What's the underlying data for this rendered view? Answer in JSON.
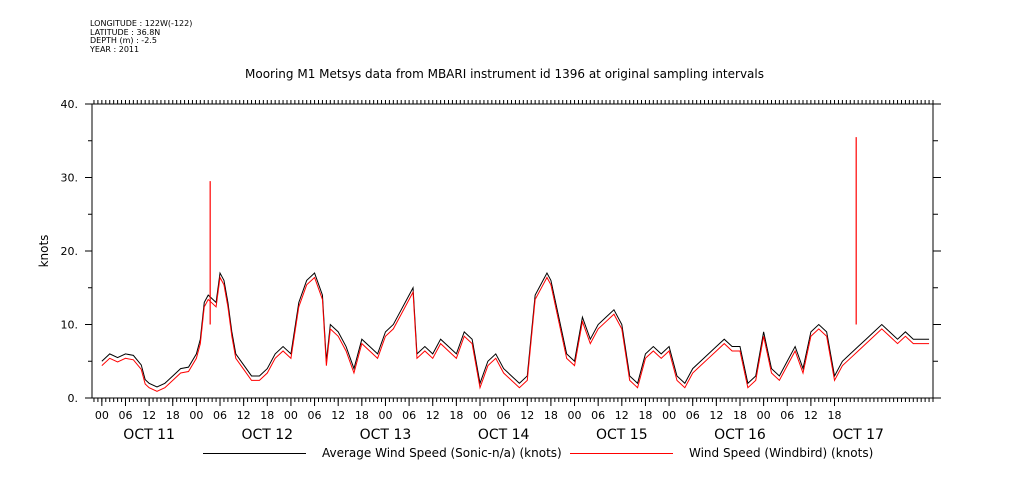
{
  "header": {
    "lines": [
      "LONGITUDE : 122W(-122)",
      "LATITUDE : 36.8N",
      "DEPTH (m) : -2.5",
      "YEAR : 2011"
    ]
  },
  "chart_data": {
    "type": "line",
    "title": "Mooring M1 Metsys data from MBARI instrument id 1396 at original sampling intervals",
    "ylabel": "knots",
    "xlabel": "",
    "ylim": [
      0,
      40
    ],
    "yticks": [
      "0.",
      "10.",
      "20.",
      "30.",
      "40."
    ],
    "xlim_hours": [
      -2.5,
      211
    ],
    "xtick_labels": [
      "00",
      "06",
      "12",
      "18",
      "00",
      "06",
      "12",
      "18",
      "00",
      "06",
      "12",
      "18",
      "00",
      "06",
      "12",
      "18",
      "00",
      "06",
      "12",
      "18",
      "00",
      "06",
      "12",
      "18",
      "00",
      "06",
      "12",
      "18",
      "00",
      "06",
      "12",
      "18"
    ],
    "day_labels": [
      "OCT 11",
      "OCT 12",
      "OCT 13",
      "OCT 14",
      "OCT 15",
      "OCT 16",
      "OCT 17"
    ],
    "series": [
      {
        "name": "Average Wind Speed (Sonic-n/a) (knots)",
        "color": "#000000",
        "x_hours": [
          0,
          2,
          4,
          6,
          8,
          10,
          11,
          12,
          14,
          16,
          18,
          20,
          22,
          24,
          25,
          26,
          27,
          28,
          29,
          30,
          31,
          32,
          33,
          34,
          36,
          38,
          40,
          42,
          44,
          46,
          48,
          50,
          52,
          54,
          56,
          57,
          58,
          60,
          62,
          64,
          66,
          68,
          70,
          72,
          74,
          76,
          78,
          79,
          80,
          82,
          84,
          86,
          88,
          90,
          92,
          94,
          96,
          98,
          100,
          102,
          104,
          106,
          108,
          110,
          112,
          113,
          114,
          116,
          118,
          120,
          122,
          124,
          126,
          128,
          130,
          132,
          134,
          136,
          138,
          140,
          142,
          144,
          146,
          148,
          150,
          152,
          154,
          156,
          158,
          160,
          162,
          164,
          166,
          168,
          170,
          172,
          174,
          176,
          178,
          180,
          182,
          184,
          186,
          188,
          190,
          192,
          194,
          196,
          198,
          200,
          202,
          204,
          206,
          208,
          210
        ],
        "values": [
          5,
          6,
          5.5,
          6,
          5.8,
          4.5,
          2.5,
          2,
          1.5,
          2,
          3,
          4,
          4.2,
          6,
          8,
          13,
          14,
          13.5,
          13,
          17,
          16,
          13,
          9,
          6,
          4.5,
          3,
          3,
          4,
          6,
          7,
          6,
          13,
          16,
          17,
          14,
          5,
          10,
          9,
          7,
          4,
          8,
          7,
          6,
          9,
          10,
          12,
          14,
          15,
          6,
          7,
          6,
          8,
          7,
          6,
          9,
          8,
          2,
          5,
          6,
          4,
          3,
          2,
          3,
          14,
          16,
          17,
          16,
          11,
          6,
          5,
          11,
          8,
          10,
          11,
          12,
          10,
          3,
          2,
          6,
          7,
          6,
          7,
          3,
          2,
          4,
          5,
          6,
          7,
          8,
          7,
          7,
          2,
          3,
          9,
          4,
          3,
          5,
          7,
          4,
          9,
          10,
          9,
          3,
          5,
          6,
          7,
          8,
          9,
          10,
          9,
          8,
          9,
          8,
          8,
          8
        ]
      },
      {
        "name": "Wind Speed (Windbird) (knots)",
        "color": "#ff0000",
        "spikes": [
          {
            "x_hours": 27.5,
            "value": 29.5
          },
          {
            "x_hours": 191.5,
            "value": 35.5
          }
        ]
      }
    ],
    "legend_position": "bottom",
    "grid": false
  }
}
